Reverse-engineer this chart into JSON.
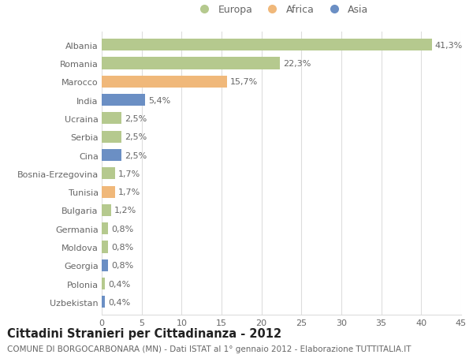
{
  "countries": [
    "Albania",
    "Romania",
    "Marocco",
    "India",
    "Ucraina",
    "Serbia",
    "Cina",
    "Bosnia-Erzegovina",
    "Tunisia",
    "Bulgaria",
    "Germania",
    "Moldova",
    "Georgia",
    "Polonia",
    "Uzbekistan"
  ],
  "values": [
    41.3,
    22.3,
    15.7,
    5.4,
    2.5,
    2.5,
    2.5,
    1.7,
    1.7,
    1.2,
    0.8,
    0.8,
    0.8,
    0.4,
    0.4
  ],
  "continents": [
    "Europa",
    "Europa",
    "Africa",
    "Asia",
    "Europa",
    "Europa",
    "Asia",
    "Europa",
    "Africa",
    "Europa",
    "Europa",
    "Europa",
    "Asia",
    "Europa",
    "Asia"
  ],
  "colors": {
    "Europa": "#b5c98e",
    "Africa": "#f0b87a",
    "Asia": "#6b8fc4"
  },
  "title": "Cittadini Stranieri per Cittadinanza - 2012",
  "subtitle": "COMUNE DI BORGOCARBONARA (MN) - Dati ISTAT al 1° gennaio 2012 - Elaborazione TUTTITALIA.IT",
  "xlim": [
    0,
    45
  ],
  "xticks": [
    0,
    5,
    10,
    15,
    20,
    25,
    30,
    35,
    40,
    45
  ],
  "background_color": "#ffffff",
  "grid_color": "#dddddd",
  "bar_height": 0.65,
  "label_fontsize": 8,
  "tick_fontsize": 8,
  "title_fontsize": 10.5,
  "subtitle_fontsize": 7.5
}
